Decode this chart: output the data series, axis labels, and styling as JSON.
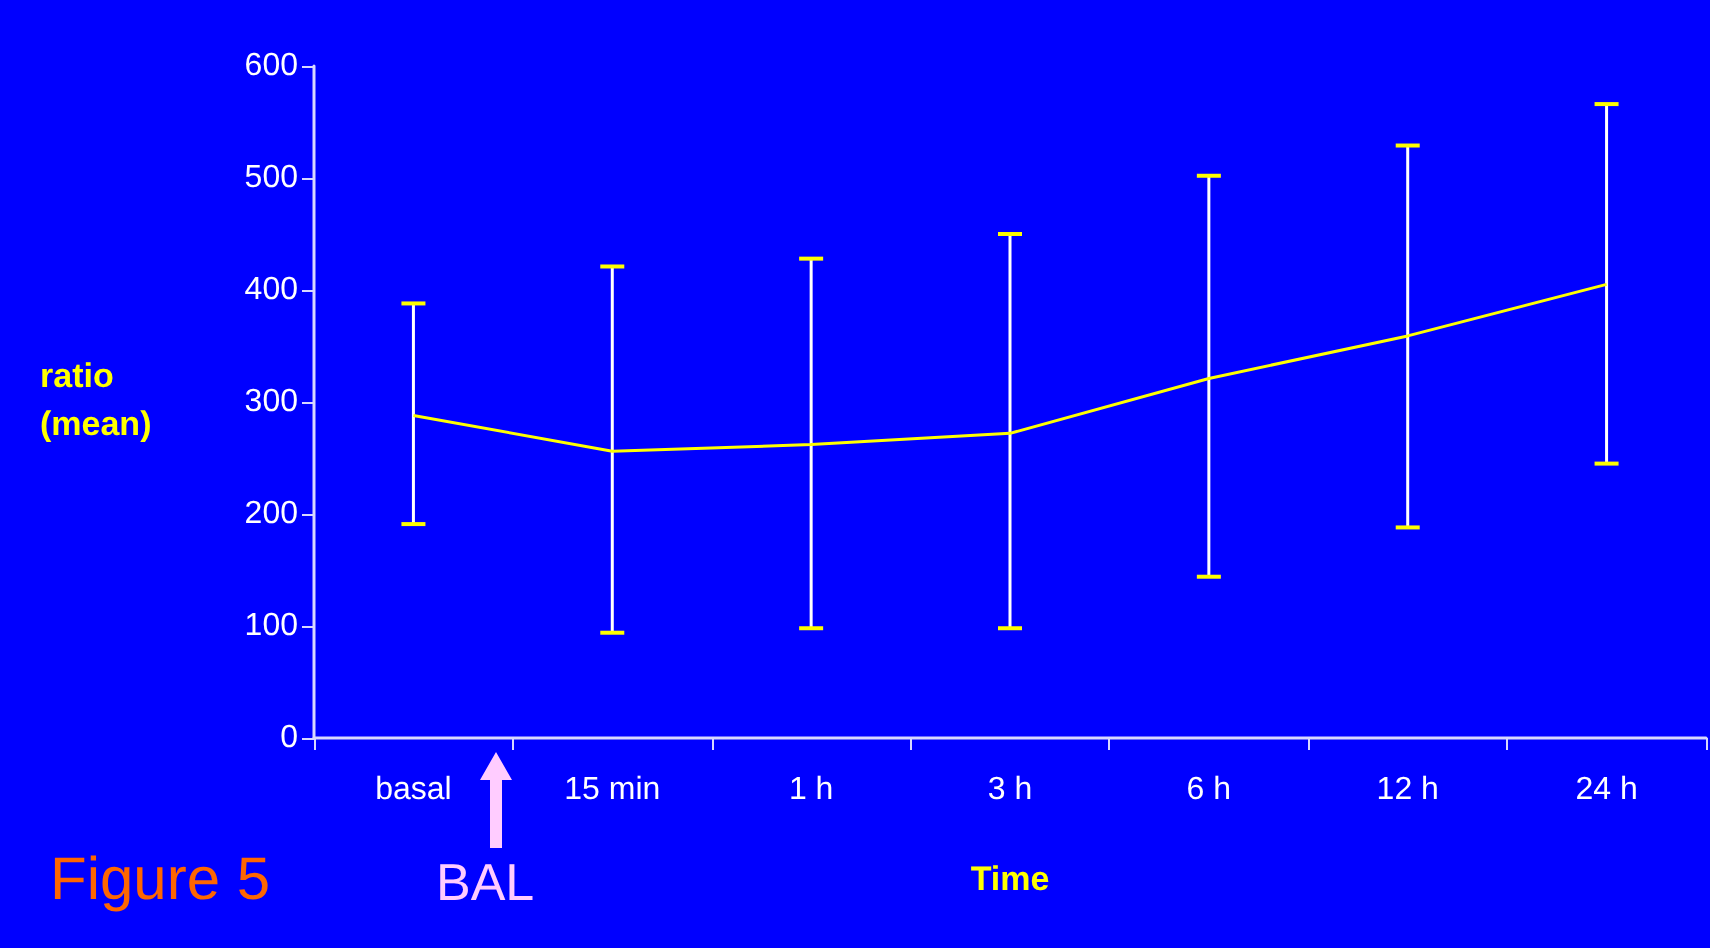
{
  "chart_data": {
    "type": "line",
    "xlabel": "Time",
    "ylabel": "ratio\n(mean)",
    "categories": [
      "basal",
      "15 min",
      "1 h",
      "3 h",
      "6 h",
      "12 h",
      "24 h"
    ],
    "series": [
      {
        "color": "#ffff00",
        "values": [
          288,
          256,
          262,
          272,
          321,
          359,
          405
        ],
        "errors": [
          [
            191,
            388
          ],
          [
            94,
            421
          ],
          [
            98,
            428
          ],
          [
            98,
            450
          ],
          [
            144,
            502
          ],
          [
            188,
            529
          ],
          [
            245,
            566
          ]
        ]
      }
    ],
    "ylim": [
      0,
      600
    ],
    "yticks": [
      0,
      100,
      200,
      300,
      400,
      500,
      600
    ],
    "grid": false,
    "marker": "none",
    "line_style": "solid",
    "annotations": [
      "Figure 5",
      "BAL"
    ]
  }
}
